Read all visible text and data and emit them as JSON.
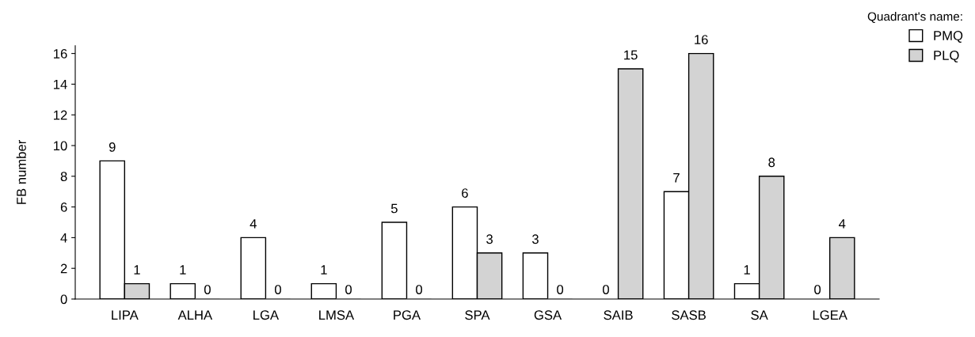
{
  "chart_data": {
    "type": "bar",
    "ylabel": "FB number",
    "legend_title": "Quadrant's name:",
    "categories": [
      "LIPA",
      "ALHA",
      "LGA",
      "LMSA",
      "PGA",
      "SPA",
      "GSA",
      "SAIB",
      "SASB",
      "SA",
      "LGEA"
    ],
    "series": [
      {
        "name": "PMQ",
        "color": "#ffffff",
        "values": [
          9,
          1,
          4,
          1,
          5,
          6,
          3,
          0,
          7,
          1,
          0
        ]
      },
      {
        "name": "PLQ",
        "color": "#d3d3d3",
        "values": [
          1,
          0,
          0,
          0,
          0,
          3,
          0,
          15,
          16,
          8,
          4
        ]
      }
    ],
    "ylim": [
      0,
      16.5
    ],
    "yticks": [
      0,
      2,
      4,
      6,
      8,
      10,
      12,
      14,
      16
    ],
    "data_labels": true,
    "grid": false,
    "legend": "top right"
  }
}
